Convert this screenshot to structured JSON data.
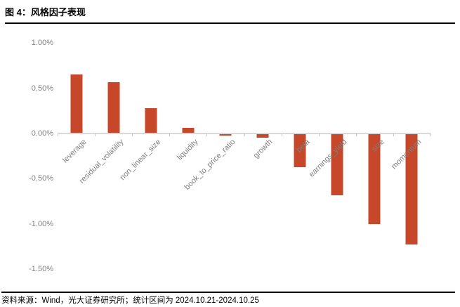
{
  "header": {
    "title": "图 4：风格因子表现"
  },
  "footer": {
    "source_note": "资料来源：Wind，光大证券研究所；统计区间为 2024.10.21-2024.10.25"
  },
  "chart_data": {
    "type": "bar",
    "title": "",
    "xlabel": "",
    "ylabel": "",
    "unit": "%",
    "categories": [
      "leverage",
      "residual_volatility",
      "non_linear_size",
      "liquidity",
      "book_to_price_ratio",
      "growth",
      "beta",
      "earnings_yield",
      "size",
      "momentum"
    ],
    "values": [
      0.65,
      0.57,
      0.28,
      0.06,
      -0.02,
      -0.04,
      -0.37,
      -0.68,
      -1.0,
      -1.22
    ],
    "y_ticks": [
      "1.00%",
      "0.50%",
      "0.00%",
      "-0.50%",
      "-1.00%",
      "-1.50%"
    ],
    "y_tick_values": [
      1.0,
      0.5,
      0.0,
      -0.5,
      -1.0,
      -1.5
    ],
    "ylim": [
      -1.5,
      1.0
    ],
    "grid": false,
    "legend_position": "none",
    "bar_color": "#C7472A",
    "axis_color": "#D9D9D9",
    "tick_label_color": "#7F7F7F",
    "category_label_angle_deg": -45
  }
}
